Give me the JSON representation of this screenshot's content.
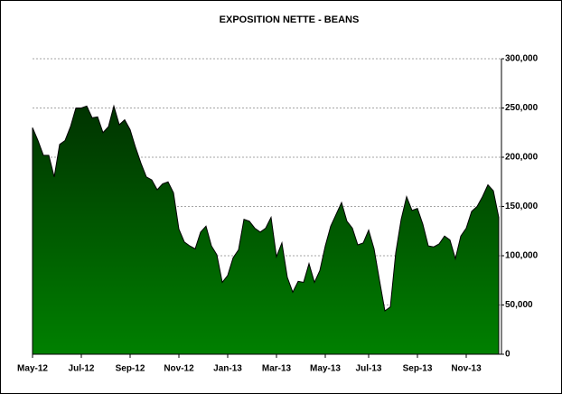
{
  "chart_data": {
    "type": "area",
    "title": "EXPOSITION NETTE - BEANS",
    "categories": [
      "May-12",
      null,
      null,
      null,
      null,
      null,
      null,
      null,
      null,
      "Jul-12",
      null,
      null,
      null,
      null,
      null,
      null,
      null,
      null,
      "Sep-12",
      null,
      null,
      null,
      null,
      null,
      null,
      null,
      null,
      "Nov-12",
      null,
      null,
      null,
      null,
      null,
      null,
      null,
      null,
      "Jan-13",
      null,
      null,
      null,
      null,
      null,
      null,
      null,
      null,
      "Mar-13",
      null,
      null,
      null,
      null,
      null,
      null,
      null,
      null,
      "May-13",
      null,
      null,
      null,
      null,
      null,
      null,
      null,
      "Jul-13",
      null,
      null,
      null,
      null,
      null,
      null,
      null,
      null,
      "Sep-13",
      null,
      null,
      null,
      null,
      null,
      null,
      null,
      null,
      "Nov-13",
      null,
      null,
      null,
      null,
      null,
      null
    ],
    "values": [
      230000,
      217000,
      202000,
      202000,
      180000,
      213000,
      217000,
      231000,
      250000,
      250000,
      252000,
      240000,
      241000,
      225000,
      231000,
      252000,
      233000,
      238000,
      228000,
      210000,
      194000,
      180000,
      177000,
      167000,
      173000,
      175000,
      164000,
      127000,
      114000,
      110000,
      107000,
      124000,
      130000,
      110000,
      101000,
      73000,
      80000,
      98000,
      106000,
      137000,
      135000,
      128000,
      124000,
      128000,
      139000,
      99000,
      113000,
      78000,
      63000,
      74000,
      73000,
      92000,
      73000,
      85000,
      110000,
      130000,
      142000,
      154000,
      135000,
      128000,
      111000,
      113000,
      126000,
      107000,
      75000,
      44000,
      48000,
      103000,
      137000,
      160000,
      146000,
      148000,
      132000,
      110000,
      109000,
      112000,
      120000,
      116000,
      97000,
      120000,
      128000,
      145000,
      150000,
      160000,
      172000,
      166000,
      139000
    ],
    "color": "#008000",
    "ylim": [
      0,
      300000
    ],
    "yticks": [
      0,
      {
        "value": 50000,
        "label": "50,000"
      },
      {
        "value": 100000,
        "label": "100,000"
      },
      {
        "value": 150000,
        "label": "150,000"
      },
      {
        "value": 200000,
        "label": "200,000"
      },
      {
        "value": 250000,
        "label": "250,000"
      },
      {
        "value": 300000,
        "label": "300,000"
      }
    ],
    "grid": true
  }
}
